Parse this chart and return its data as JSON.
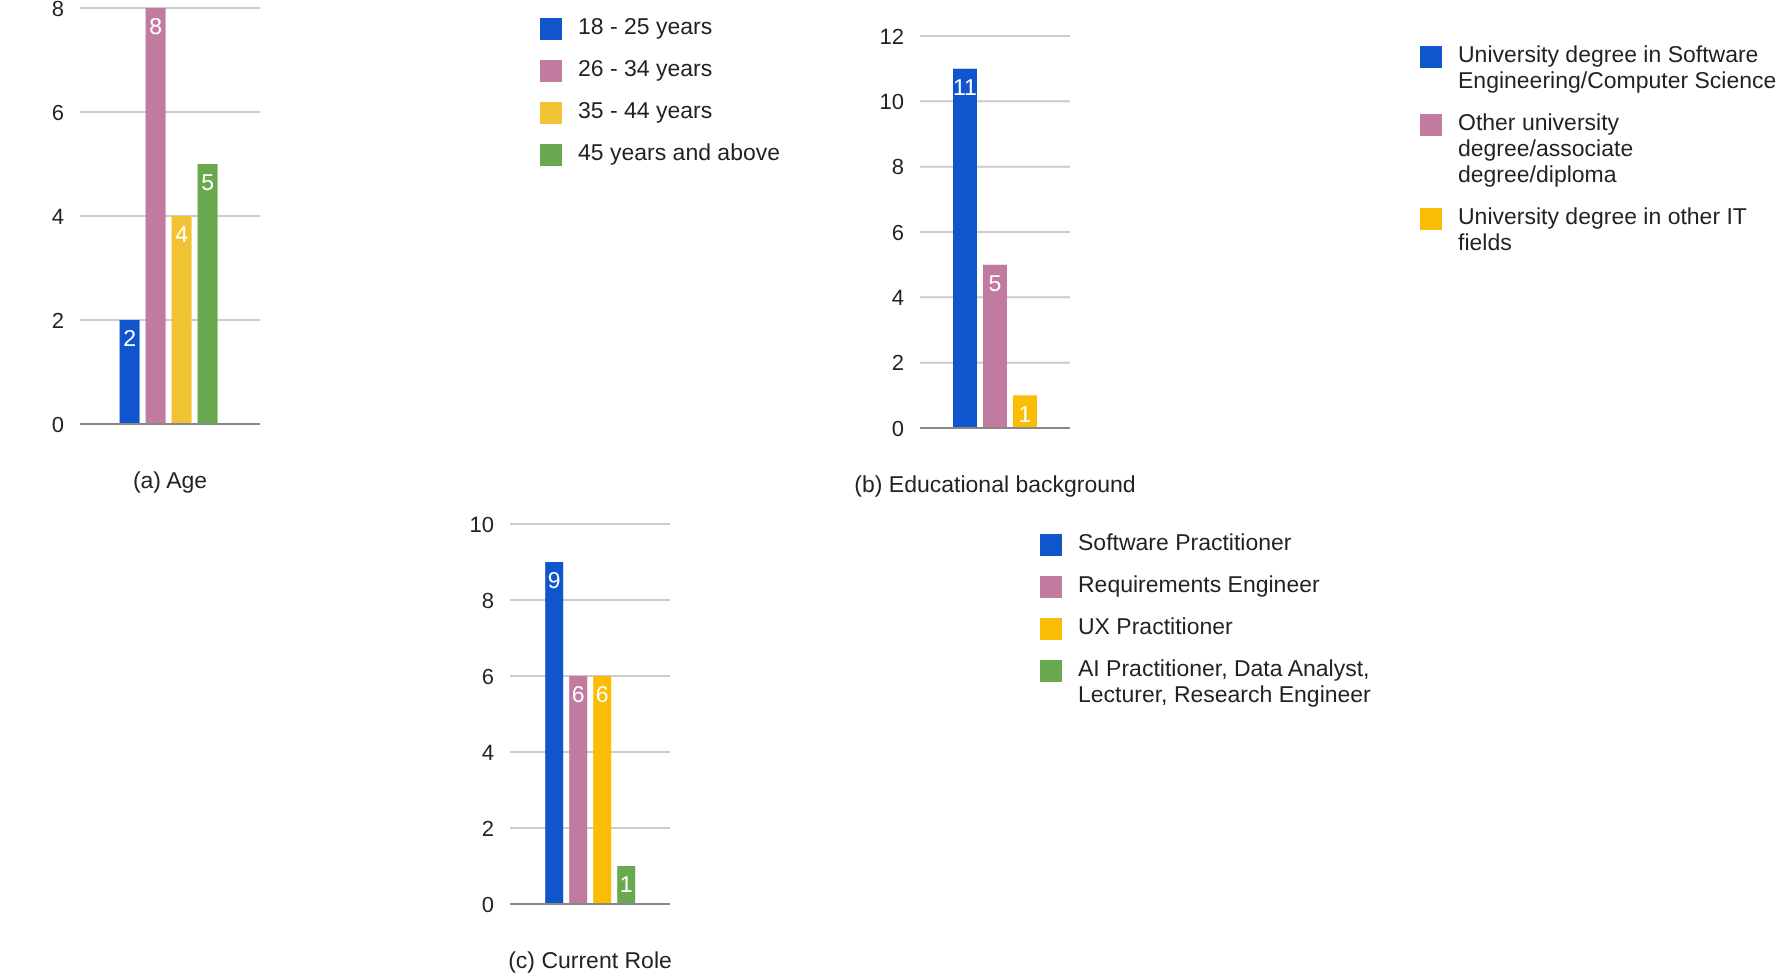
{
  "chart_data": [
    {
      "type": "bar",
      "xlabel": "(a) Age",
      "categories": [
        null
      ],
      "series": [
        {
          "name": "18 - 25 years",
          "color": "#1155cc",
          "values": [
            2
          ]
        },
        {
          "name": "26 - 34 years",
          "color": "#c27ba0",
          "values": [
            8
          ]
        },
        {
          "name": "35 - 44 years",
          "color": "#f1c232",
          "values": [
            4
          ]
        },
        {
          "name": "45 years and above",
          "color": "#6aa84f",
          "values": [
            5
          ]
        }
      ],
      "ylim": [
        0,
        8
      ],
      "yticks": [
        0,
        2,
        4,
        6,
        8
      ],
      "grid": "y",
      "legend": "right",
      "data_labels": true
    },
    {
      "type": "bar",
      "xlabel": "(b) Educational background",
      "categories": [
        null
      ],
      "series": [
        {
          "name": "University degree in Software Engineering/Computer Science",
          "color": "#1155cc",
          "values": [
            11
          ]
        },
        {
          "name": "Other university degree/associate degree/diploma",
          "color": "#c27ba0",
          "values": [
            5
          ]
        },
        {
          "name": "University degree in other IT fields",
          "color": "#fbbc04",
          "values": [
            1
          ]
        }
      ],
      "ylim": [
        0,
        12
      ],
      "yticks": [
        0,
        2,
        4,
        6,
        8,
        10,
        12
      ],
      "grid": "y",
      "legend": "right",
      "data_labels": true
    },
    {
      "type": "bar",
      "xlabel": "(c) Current Role",
      "categories": [
        null
      ],
      "series": [
        {
          "name": "Software Practitioner",
          "color": "#1155cc",
          "values": [
            9
          ]
        },
        {
          "name": "Requirements Engineer",
          "color": "#c27ba0",
          "values": [
            6
          ]
        },
        {
          "name": "UX Practitioner",
          "color": "#fbbc04",
          "values": [
            6
          ]
        },
        {
          "name": "AI Practitioner, Data Analyst, Lecturer, Research Engineer",
          "color": "#6aa84f",
          "values": [
            1
          ]
        }
      ],
      "ylim": [
        0,
        10
      ],
      "yticks": [
        0,
        2,
        4,
        6,
        8,
        10
      ],
      "grid": "y",
      "legend": "right",
      "data_labels": true
    }
  ]
}
